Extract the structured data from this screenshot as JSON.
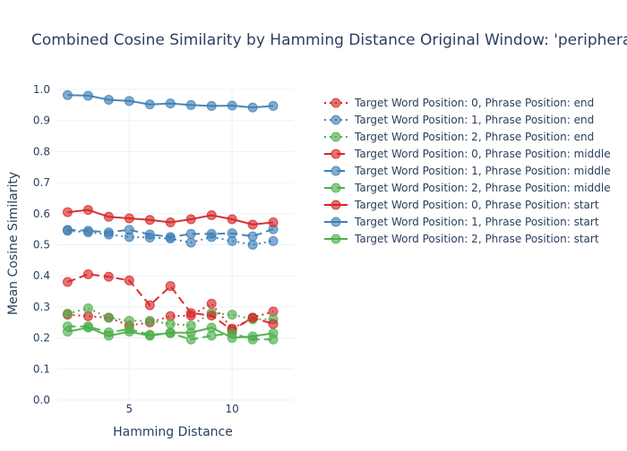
{
  "chart_data": {
    "type": "line",
    "title": "Combined Cosine Similarity by Hamming Distance Original Window: 'peripheral",
    "xlabel": "Hamming Distance",
    "ylabel": "Mean Cosine Similarity",
    "xlim": [
      1.5,
      13
    ],
    "ylim": [
      0,
      1.0
    ],
    "x_ticks": [
      5,
      10
    ],
    "y_ticks": [
      0.0,
      0.1,
      0.2,
      0.3,
      0.4,
      0.5,
      0.6,
      0.7,
      0.8,
      0.9,
      1.0
    ],
    "grid": true,
    "legend_position": "right",
    "x": [
      2,
      3,
      4,
      5,
      6,
      7,
      8,
      9,
      10,
      11,
      12
    ],
    "series": [
      {
        "name": "Target Word Position: 0, Phrase Position: end",
        "color": "#d62728",
        "dash": "dot",
        "values": [
          0.275,
          0.27,
          0.265,
          0.24,
          0.25,
          0.27,
          0.272,
          0.31,
          0.23,
          0.265,
          0.285
        ]
      },
      {
        "name": "Target Word Position: 1, Phrase Position: end",
        "color": "#3f7fb5",
        "dash": "dot",
        "values": [
          0.545,
          0.54,
          0.533,
          0.525,
          0.523,
          0.52,
          0.507,
          0.525,
          0.512,
          0.5,
          0.512
        ]
      },
      {
        "name": "Target Word Position: 2, Phrase Position: end",
        "color": "#4daf4a",
        "dash": "dot",
        "values": [
          0.278,
          0.295,
          0.265,
          0.255,
          0.255,
          0.245,
          0.24,
          0.28,
          0.275,
          0.26,
          0.26
        ]
      },
      {
        "name": "Target Word Position: 0, Phrase Position: middle",
        "color": "#d62728",
        "dash": "dash",
        "values": [
          0.38,
          0.405,
          0.397,
          0.385,
          0.305,
          0.367,
          0.28,
          0.272,
          0.225,
          0.265,
          0.245
        ]
      },
      {
        "name": "Target Word Position: 1, Phrase Position: middle",
        "color": "#3f7fb5",
        "dash": "dash",
        "values": [
          0.548,
          0.545,
          0.54,
          0.548,
          0.533,
          0.525,
          0.535,
          0.535,
          0.537,
          0.527,
          0.55
        ]
      },
      {
        "name": "Target Word Position: 2, Phrase Position: middle",
        "color": "#4daf4a",
        "dash": "dash",
        "values": [
          0.237,
          0.237,
          0.218,
          0.228,
          0.21,
          0.215,
          0.195,
          0.207,
          0.215,
          0.195,
          0.195
        ]
      },
      {
        "name": "Target Word Position: 0, Phrase Position: start",
        "color": "#d62728",
        "dash": "solid",
        "values": [
          0.605,
          0.612,
          0.59,
          0.585,
          0.58,
          0.572,
          0.582,
          0.595,
          0.582,
          0.565,
          0.572
        ]
      },
      {
        "name": "Target Word Position: 1, Phrase Position: start",
        "color": "#3f7fb5",
        "dash": "solid",
        "values": [
          0.982,
          0.98,
          0.967,
          0.963,
          0.952,
          0.955,
          0.95,
          0.947,
          0.948,
          0.942,
          0.947
        ]
      },
      {
        "name": "Target Word Position: 2, Phrase Position: start",
        "color": "#4daf4a",
        "dash": "solid",
        "values": [
          0.22,
          0.233,
          0.207,
          0.22,
          0.207,
          0.217,
          0.217,
          0.233,
          0.2,
          0.205,
          0.215
        ]
      }
    ]
  }
}
